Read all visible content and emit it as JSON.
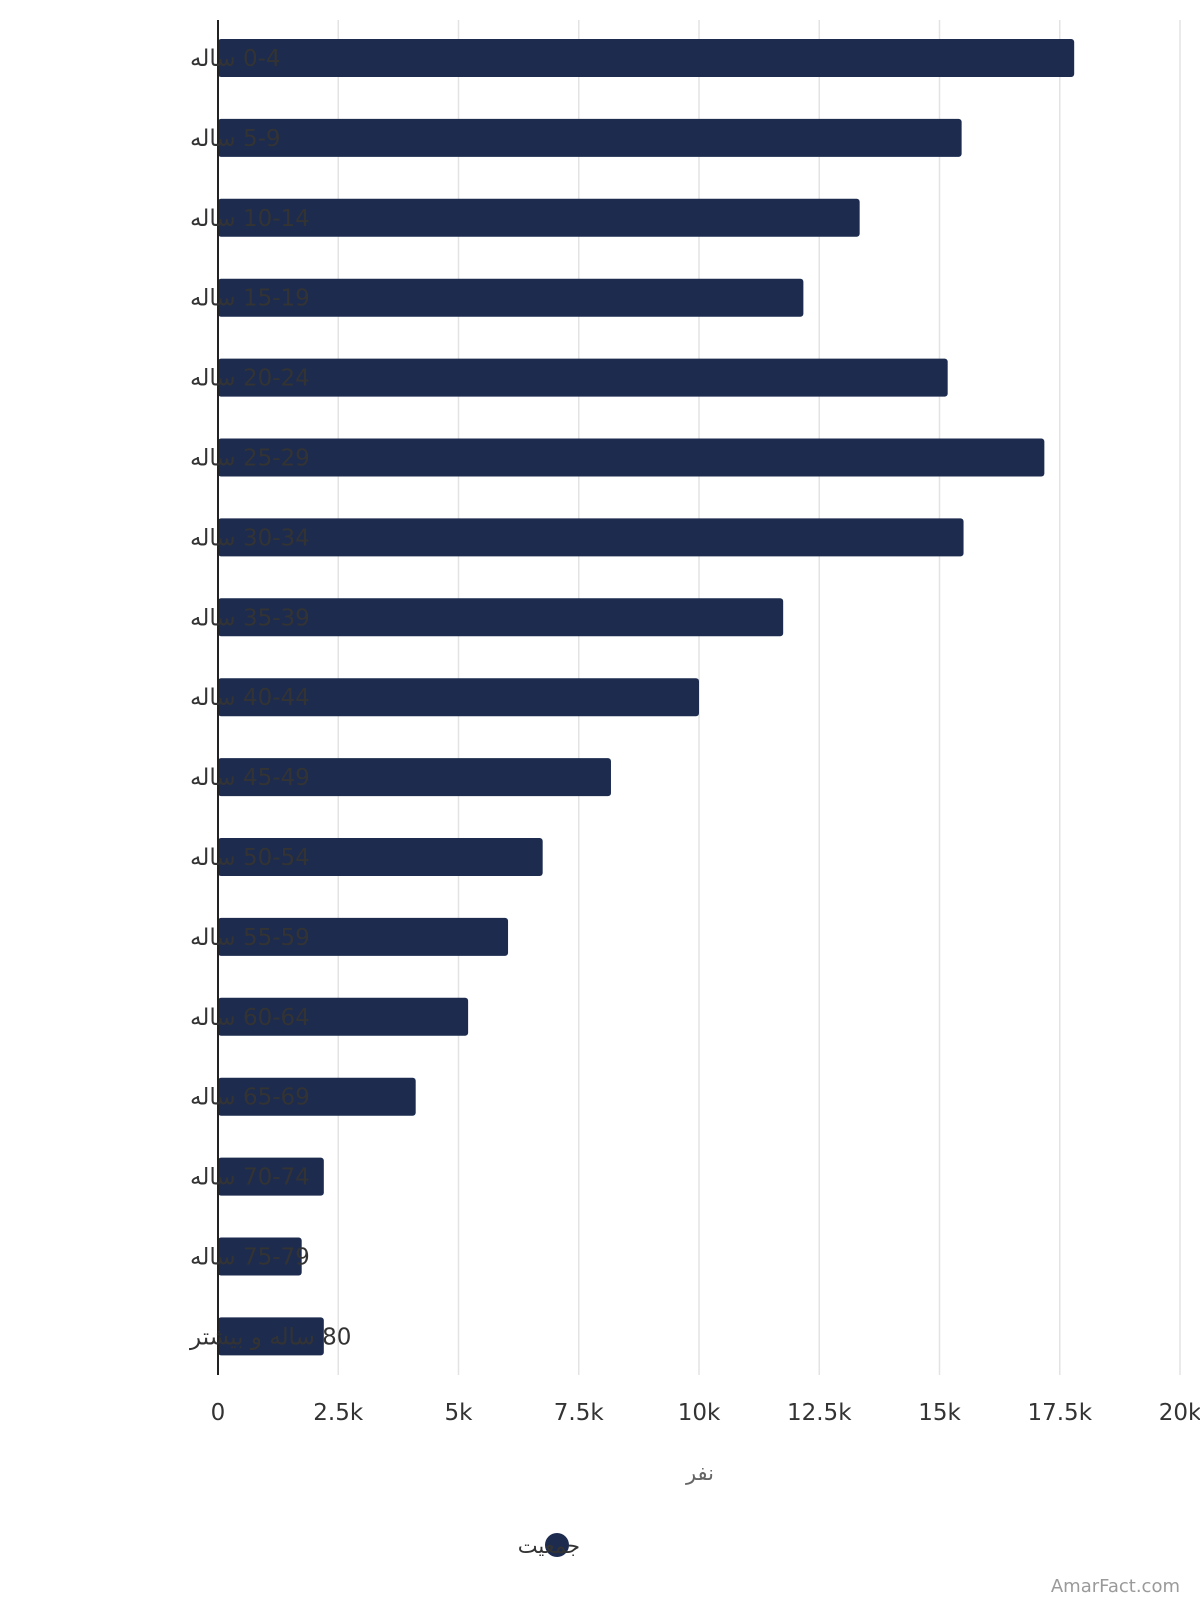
{
  "chart_data": {
    "type": "bar",
    "orientation": "horizontal",
    "categories": [
      "0-4 ساله",
      "5-9 ساله",
      "10-14 ساله",
      "15-19 ساله",
      "20-24 ساله",
      "25-29 ساله",
      "30-34 ساله",
      "35-39 ساله",
      "40-44 ساله",
      "45-49 ساله",
      "50-54 ساله",
      "55-59 ساله",
      "60-64 ساله",
      "65-69 ساله",
      "70-74 ساله",
      "75-79 ساله",
      "80 ساله و بیشتر"
    ],
    "series": [
      {
        "name": "جمعیت",
        "color": "#1c2b4e",
        "values": [
          17800,
          15460,
          13340,
          12170,
          15170,
          17180,
          15500,
          11750,
          10000,
          8170,
          6750,
          6030,
          5200,
          4110,
          2200,
          1740,
          2200
        ]
      }
    ],
    "xlabel": "نفر",
    "ylabel": "",
    "xlim": [
      0,
      20000
    ],
    "ticks": [
      {
        "value": 0,
        "label": "0"
      },
      {
        "value": 2500,
        "label": "2.5k"
      },
      {
        "value": 5000,
        "label": "5k"
      },
      {
        "value": 7500,
        "label": "7.5k"
      },
      {
        "value": 10000,
        "label": "10k"
      },
      {
        "value": 12500,
        "label": "12.5k"
      },
      {
        "value": 15000,
        "label": "15k"
      },
      {
        "value": 17500,
        "label": "17.5k"
      },
      {
        "value": 20000,
        "label": "20k"
      }
    ],
    "grid": true,
    "legend_position": "bottom-center"
  },
  "source_credit": "AmarFact.com"
}
